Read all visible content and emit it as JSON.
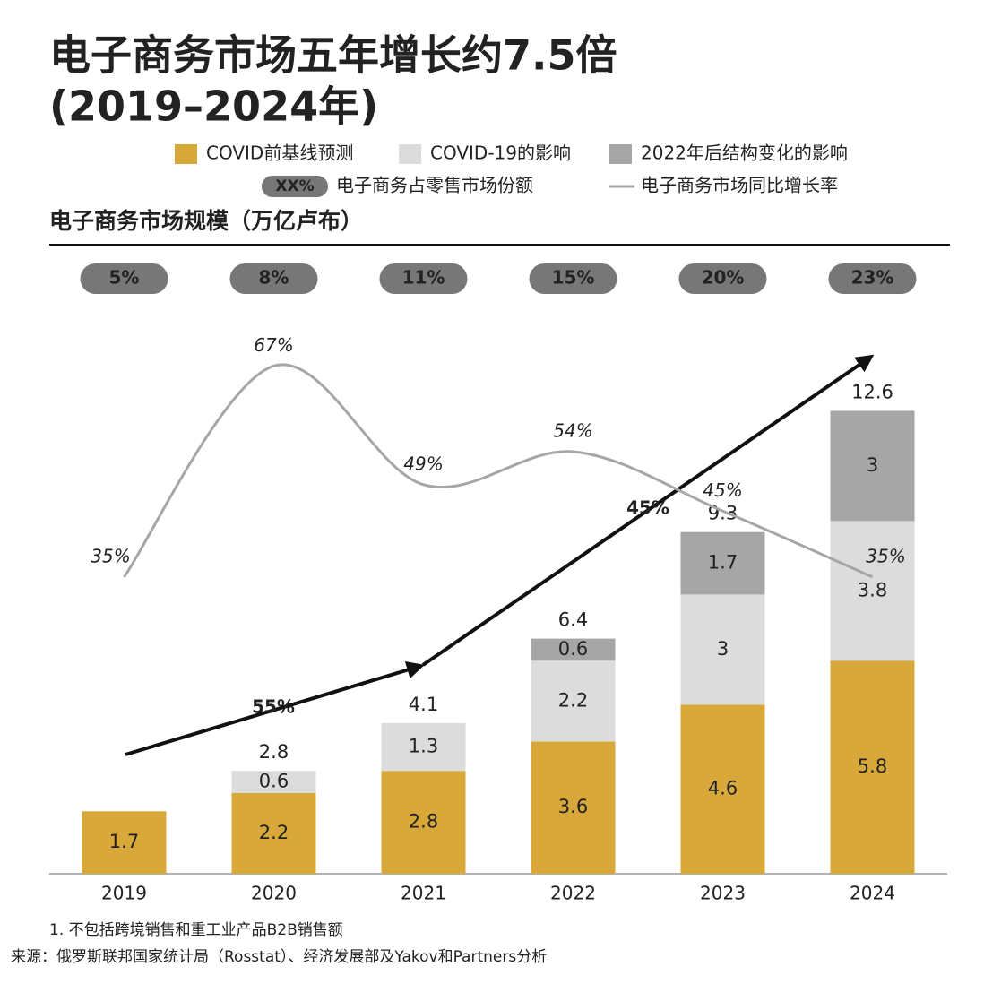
{
  "chart_data": {
    "type": "bar",
    "title": "电子商务市场五年增长约7.5倍",
    "title_line2": "(2019–2024年)",
    "subtitle": "电子商务市场规模（万亿卢布）",
    "categories": [
      "2019",
      "2020",
      "2021",
      "2022",
      "2023",
      "2024"
    ],
    "stacked": true,
    "series": [
      {
        "name": "COVID前基线预测",
        "color": "#d9a83a",
        "values": [
          1.7,
          2.2,
          2.8,
          3.6,
          4.6,
          5.8
        ]
      },
      {
        "name": "COVID-19的影响",
        "color": "#dcdcdc",
        "values": [
          null,
          0.6,
          1.3,
          2.2,
          3.0,
          3.8
        ]
      },
      {
        "name": "2022年后结构变化的影响",
        "color": "#a6a6a6",
        "values": [
          null,
          null,
          null,
          0.6,
          1.7,
          3.0
        ]
      }
    ],
    "totals": [
      null,
      2.8,
      4.1,
      6.4,
      9.3,
      12.6
    ],
    "ylim": [
      0,
      14
    ],
    "share": {
      "name": "电子商务占零售市场份额",
      "legend_sample": "XX%",
      "color": "#777777",
      "values": [
        5,
        8,
        11,
        15,
        20,
        23
      ],
      "value_labels": [
        "5%",
        "8%",
        "11%",
        "15%",
        "20%",
        "23%"
      ]
    },
    "growth": {
      "name": "电子商务市场同比增长率",
      "color": "#a6a6a6",
      "axis": "y2",
      "values": [
        35,
        67,
        49,
        54,
        45,
        35
      ],
      "value_labels": [
        "35%",
        "67%",
        "49%",
        "54%",
        "45%",
        "35%"
      ]
    },
    "y2lim": [
      -10,
      68
    ],
    "annotations": [
      {
        "text": "55%"
      },
      {
        "text": "45%"
      }
    ],
    "footnotes": [
      "1. 不包括跨境销售和重工业产品B2B销售额",
      "来源：俄罗斯联邦国家统计局（Rosstat）、经济发展部及Yakov和Partners分析"
    ]
  }
}
